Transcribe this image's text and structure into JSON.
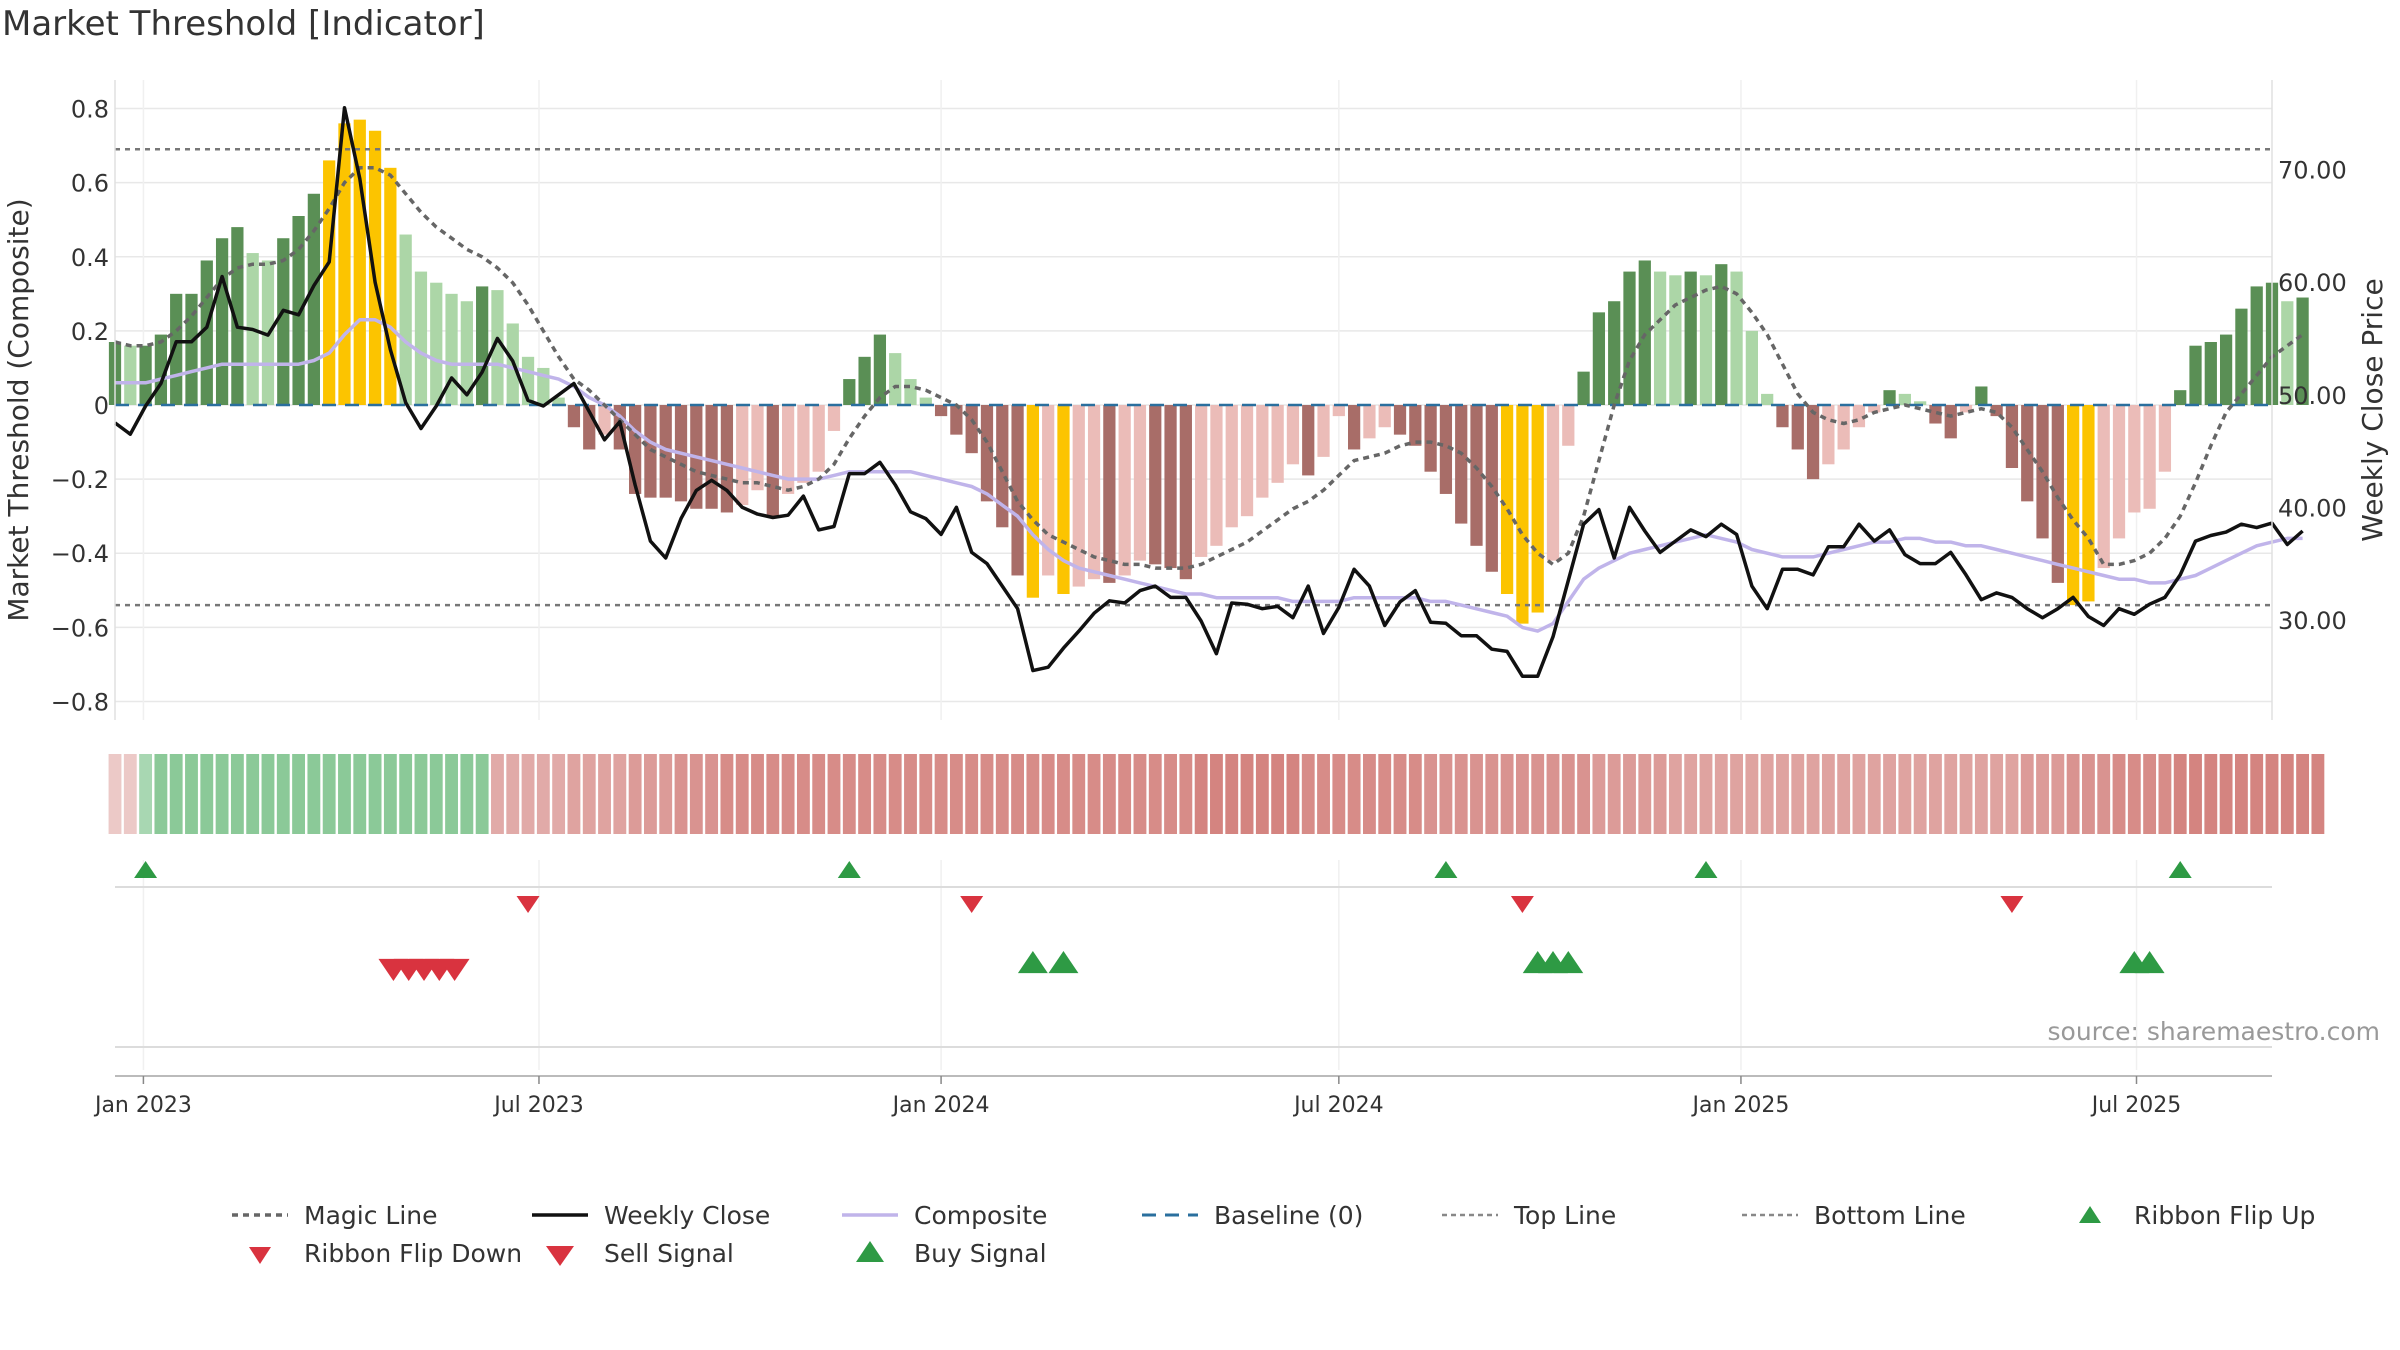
{
  "title": "Market Threshold [Indicator]",
  "source": "source: sharemaestro.com",
  "colors": {
    "green_dark": "#5a8f55",
    "green_light": "#acd6a7",
    "red_dark": "#a86d68",
    "red_light": "#ebbcb8",
    "gold": "#fcc400",
    "magic": "#666666",
    "close": "#111111",
    "composite": "#c0b4ea",
    "baseline": "#2a6f9e",
    "buy": "#2e9a44",
    "sell": "#d9333f"
  },
  "legend": [
    {
      "key": "magic",
      "label": "Magic Line"
    },
    {
      "key": "close",
      "label": "Weekly Close"
    },
    {
      "key": "composite",
      "label": "Composite"
    },
    {
      "key": "baseline",
      "label": "Baseline (0)"
    },
    {
      "key": "top",
      "label": "Top Line"
    },
    {
      "key": "bottom",
      "label": "Bottom Line"
    },
    {
      "key": "flipup",
      "label": "Ribbon Flip Up"
    },
    {
      "key": "flipdown",
      "label": "Ribbon Flip Down"
    },
    {
      "key": "sell",
      "label": "Sell Signal"
    },
    {
      "key": "buy",
      "label": "Buy Signal"
    }
  ],
  "chart_data": {
    "type": "bar",
    "title": "Market Threshold [Indicator]",
    "ylabel": "Market Threshold (Composite)",
    "y2label": "Weekly Close Price",
    "ylim": [
      -0.85,
      0.85
    ],
    "y2lim": [
      21.11,
      77.07
    ],
    "yticks": [
      "0.8",
      "0.6",
      "0.4",
      "0.2",
      "0",
      "−0.2",
      "−0.4",
      "−0.6",
      "−0.8"
    ],
    "y2ticks": [
      "70.00",
      "60.00",
      "50.00",
      "40.00",
      "30.00"
    ],
    "xlim": [
      "2022-12-19",
      "2025-09-01"
    ],
    "xticks": [
      {
        "date": "2023-01-01",
        "label": "Jan 2023"
      },
      {
        "date": "2023-07-01",
        "label": "Jul 2023"
      },
      {
        "date": "2024-01-01",
        "label": "Jan 2024"
      },
      {
        "date": "2024-07-01",
        "label": "Jul 2024"
      },
      {
        "date": "2025-01-01",
        "label": "Jan 2025"
      },
      {
        "date": "2025-07-01",
        "label": "Jul 2025"
      }
    ],
    "start_date": "2022-12-19",
    "top_line": 0.69,
    "bottom_line": -0.54,
    "grid": true,
    "composite_bars": [
      0.17,
      0.16,
      0.16,
      0.19,
      0.3,
      0.3,
      0.39,
      0.45,
      0.48,
      0.41,
      0.39,
      0.45,
      0.51,
      0.57,
      0.66,
      0.76,
      0.77,
      0.74,
      0.64,
      0.46,
      0.36,
      0.33,
      0.3,
      0.28,
      0.32,
      0.31,
      0.22,
      0.13,
      0.1,
      0.02,
      -0.06,
      -0.12,
      -0.08,
      -0.12,
      -0.24,
      -0.25,
      -0.25,
      -0.26,
      -0.28,
      -0.28,
      -0.29,
      -0.27,
      -0.23,
      -0.3,
      -0.24,
      -0.21,
      -0.18,
      -0.07,
      0.07,
      0.13,
      0.19,
      0.14,
      0.07,
      0.02,
      -0.03,
      -0.08,
      -0.13,
      -0.26,
      -0.33,
      -0.46,
      -0.52,
      -0.46,
      -0.51,
      -0.49,
      -0.47,
      -0.48,
      -0.46,
      -0.42,
      -0.43,
      -0.44,
      -0.47,
      -0.41,
      -0.38,
      -0.33,
      -0.3,
      -0.25,
      -0.21,
      -0.16,
      -0.19,
      -0.14,
      -0.03,
      -0.12,
      -0.09,
      -0.06,
      -0.08,
      -0.11,
      -0.18,
      -0.24,
      -0.32,
      -0.38,
      -0.45,
      -0.51,
      -0.59,
      -0.56,
      -0.42,
      -0.11,
      0.09,
      0.25,
      0.28,
      0.36,
      0.39,
      0.36,
      0.35,
      0.36,
      0.35,
      0.38,
      0.36,
      0.2,
      0.03,
      -0.06,
      -0.12,
      -0.2,
      -0.16,
      -0.12,
      -0.06,
      -0.02,
      0.04,
      0.03,
      0.01,
      -0.05,
      -0.09,
      -0.02,
      0.05,
      -0.03,
      -0.17,
      -0.26,
      -0.36,
      -0.48,
      -0.54,
      -0.53,
      -0.44,
      -0.36,
      -0.29,
      -0.28,
      -0.18,
      0.04,
      0.16,
      0.17,
      0.19,
      0.26,
      0.32,
      0.33,
      0.28,
      0.29
    ],
    "weekly_close": [
      47.5,
      46.5,
      49,
      51,
      54.7,
      54.7,
      56,
      60.5,
      56,
      55.8,
      55.3,
      57.5,
      57.1,
      59.7,
      61.8,
      75.5,
      69.2,
      60,
      54,
      49.3,
      47,
      49,
      51.5,
      50,
      52,
      55,
      53,
      49.5,
      49,
      50,
      51,
      48.5,
      46,
      47.6,
      42,
      37,
      35.5,
      39,
      41.5,
      42.4,
      41.5,
      40,
      39.4,
      39.1,
      39.3,
      41,
      38,
      38.3,
      43,
      43,
      44,
      42,
      39.6,
      39,
      37.6,
      40,
      36,
      35,
      33,
      31,
      25.5,
      25.8,
      27.5,
      29,
      30.6,
      31.7,
      31.5,
      32.6,
      33,
      32,
      32,
      29.9,
      27,
      31.5,
      31.4,
      31,
      31.2,
      30.2,
      33,
      28.8,
      31.1,
      34.5,
      33,
      29.5,
      31.6,
      32.6,
      29.8,
      29.7,
      28.6,
      28.6,
      27.4,
      27.2,
      25,
      25,
      28.5,
      33.5,
      38.5,
      39.8,
      35.5,
      40,
      37.9,
      36,
      37,
      38,
      37.4,
      38.5,
      37.6,
      33,
      31,
      34.5,
      34.5,
      34,
      36.5,
      36.5,
      38.5,
      37,
      38,
      35.8,
      35,
      35,
      36,
      34,
      31.8,
      32.4,
      32,
      31,
      30.2,
      31,
      32,
      30.3,
      29.5,
      31,
      30.5,
      31.4,
      32,
      34,
      37,
      37.5,
      37.8,
      38.5,
      38.2,
      38.6,
      36.7,
      37.9
    ],
    "composite_line": [
      0.06,
      0.06,
      0.06,
      0.07,
      0.08,
      0.09,
      0.1,
      0.11,
      0.11,
      0.11,
      0.11,
      0.11,
      0.11,
      0.12,
      0.14,
      0.19,
      0.23,
      0.23,
      0.21,
      0.17,
      0.14,
      0.12,
      0.11,
      0.11,
      0.11,
      0.11,
      0.1,
      0.09,
      0.08,
      0.07,
      0.05,
      0.02,
      0,
      -0.03,
      -0.07,
      -0.1,
      -0.12,
      -0.13,
      -0.14,
      -0.15,
      -0.16,
      -0.17,
      -0.18,
      -0.19,
      -0.2,
      -0.2,
      -0.2,
      -0.19,
      -0.18,
      -0.18,
      -0.18,
      -0.18,
      -0.18,
      -0.19,
      -0.2,
      -0.21,
      -0.22,
      -0.24,
      -0.27,
      -0.3,
      -0.35,
      -0.39,
      -0.42,
      -0.44,
      -0.45,
      -0.46,
      -0.47,
      -0.48,
      -0.49,
      -0.5,
      -0.51,
      -0.51,
      -0.52,
      -0.52,
      -0.52,
      -0.52,
      -0.52,
      -0.53,
      -0.53,
      -0.53,
      -0.53,
      -0.52,
      -0.52,
      -0.52,
      -0.52,
      -0.52,
      -0.53,
      -0.53,
      -0.54,
      -0.55,
      -0.56,
      -0.57,
      -0.6,
      -0.61,
      -0.59,
      -0.53,
      -0.47,
      -0.44,
      -0.42,
      -0.4,
      -0.39,
      -0.38,
      -0.37,
      -0.36,
      -0.35,
      -0.36,
      -0.37,
      -0.39,
      -0.4,
      -0.41,
      -0.41,
      -0.41,
      -0.4,
      -0.39,
      -0.38,
      -0.37,
      -0.37,
      -0.36,
      -0.36,
      -0.37,
      -0.37,
      -0.38,
      -0.38,
      -0.39,
      -0.4,
      -0.41,
      -0.42,
      -0.43,
      -0.44,
      -0.45,
      -0.46,
      -0.47,
      -0.47,
      -0.48,
      -0.48,
      -0.47,
      -0.46,
      -0.44,
      -0.42,
      -0.4,
      -0.38,
      -0.37,
      -0.36,
      -0.36
    ],
    "magic_line": [
      0.17,
      0.16,
      0.16,
      0.17,
      0.2,
      0.24,
      0.29,
      0.34,
      0.37,
      0.38,
      0.38,
      0.39,
      0.42,
      0.47,
      0.53,
      0.6,
      0.64,
      0.64,
      0.62,
      0.57,
      0.52,
      0.48,
      0.45,
      0.42,
      0.4,
      0.37,
      0.33,
      0.27,
      0.2,
      0.13,
      0.07,
      0.04,
      0,
      -0.04,
      -0.08,
      -0.12,
      -0.14,
      -0.16,
      -0.18,
      -0.19,
      -0.2,
      -0.21,
      -0.21,
      -0.22,
      -0.23,
      -0.22,
      -0.2,
      -0.16,
      -0.09,
      -0.03,
      0.02,
      0.05,
      0.05,
      0.04,
      0.02,
      0,
      -0.04,
      -0.1,
      -0.18,
      -0.26,
      -0.31,
      -0.35,
      -0.37,
      -0.39,
      -0.41,
      -0.42,
      -0.43,
      -0.43,
      -0.44,
      -0.44,
      -0.44,
      -0.43,
      -0.41,
      -0.39,
      -0.37,
      -0.34,
      -0.31,
      -0.28,
      -0.26,
      -0.23,
      -0.19,
      -0.15,
      -0.14,
      -0.13,
      -0.11,
      -0.1,
      -0.1,
      -0.11,
      -0.13,
      -0.17,
      -0.22,
      -0.28,
      -0.35,
      -0.4,
      -0.43,
      -0.4,
      -0.3,
      -0.15,
      0,
      0.12,
      0.19,
      0.23,
      0.27,
      0.29,
      0.31,
      0.32,
      0.3,
      0.25,
      0.19,
      0.11,
      0.03,
      -0.02,
      -0.04,
      -0.05,
      -0.04,
      -0.02,
      -0.01,
      0,
      -0.01,
      -0.02,
      -0.03,
      -0.02,
      -0.01,
      -0.02,
      -0.06,
      -0.12,
      -0.18,
      -0.25,
      -0.31,
      -0.36,
      -0.43,
      -0.43,
      -0.42,
      -0.4,
      -0.36,
      -0.3,
      -0.21,
      -0.11,
      -0.02,
      0.03,
      0.08,
      0.13,
      0.16,
      0.19
    ],
    "ribbon": [
      -0.25,
      -0.25,
      0.3,
      0.45,
      0.45,
      0.45,
      0.45,
      0.45,
      0.45,
      0.45,
      0.45,
      0.45,
      0.45,
      0.45,
      0.45,
      0.45,
      0.45,
      0.45,
      0.45,
      0.45,
      0.45,
      0.45,
      0.45,
      0.45,
      0.45,
      -0.45,
      -0.45,
      -0.45,
      -0.45,
      -0.45,
      -0.5,
      -0.5,
      -0.5,
      -0.5,
      -0.55,
      -0.55,
      -0.55,
      -0.6,
      -0.6,
      -0.6,
      -0.65,
      -0.65,
      -0.65,
      -0.65,
      -0.65,
      -0.65,
      -0.65,
      -0.65,
      -0.65,
      -0.65,
      -0.65,
      -0.65,
      -0.65,
      -0.65,
      -0.65,
      -0.65,
      -0.65,
      -0.65,
      -0.65,
      -0.65,
      -0.65,
      -0.65,
      -0.65,
      -0.65,
      -0.65,
      -0.65,
      -0.65,
      -0.65,
      -0.65,
      -0.65,
      -0.65,
      -0.7,
      -0.7,
      -0.7,
      -0.7,
      -0.7,
      -0.7,
      -0.7,
      -0.65,
      -0.65,
      -0.65,
      -0.65,
      -0.65,
      -0.65,
      -0.65,
      -0.65,
      -0.6,
      -0.6,
      -0.6,
      -0.6,
      -0.6,
      -0.6,
      -0.6,
      -0.6,
      -0.6,
      -0.6,
      -0.6,
      -0.55,
      -0.55,
      -0.55,
      -0.55,
      -0.55,
      -0.5,
      -0.5,
      -0.5,
      -0.5,
      -0.5,
      -0.5,
      -0.5,
      -0.5,
      -0.5,
      -0.5,
      -0.5,
      -0.5,
      -0.5,
      -0.5,
      -0.5,
      -0.5,
      -0.5,
      -0.5,
      -0.5,
      -0.5,
      -0.5,
      -0.5,
      -0.5,
      -0.55,
      -0.55,
      -0.55,
      -0.6,
      -0.6,
      -0.6,
      -0.65,
      -0.65,
      -0.65,
      -0.65,
      -0.7,
      -0.7,
      -0.7,
      -0.7,
      -0.7,
      -0.7,
      -0.7,
      -0.7,
      -0.7,
      -0.7
    ],
    "ribbon_note": "",
    "ribbon_flip_up_weeks": [
      2,
      48,
      87,
      104,
      135
    ],
    "ribbon_flip_down_weeks": [
      27,
      56,
      92,
      124
    ],
    "sell_signal_weeks": [
      18.2,
      19.2,
      20.2,
      21.2,
      22.2
    ],
    "buy_signal_weeks": [
      60,
      62,
      93,
      94,
      95,
      132,
      133
    ]
  }
}
